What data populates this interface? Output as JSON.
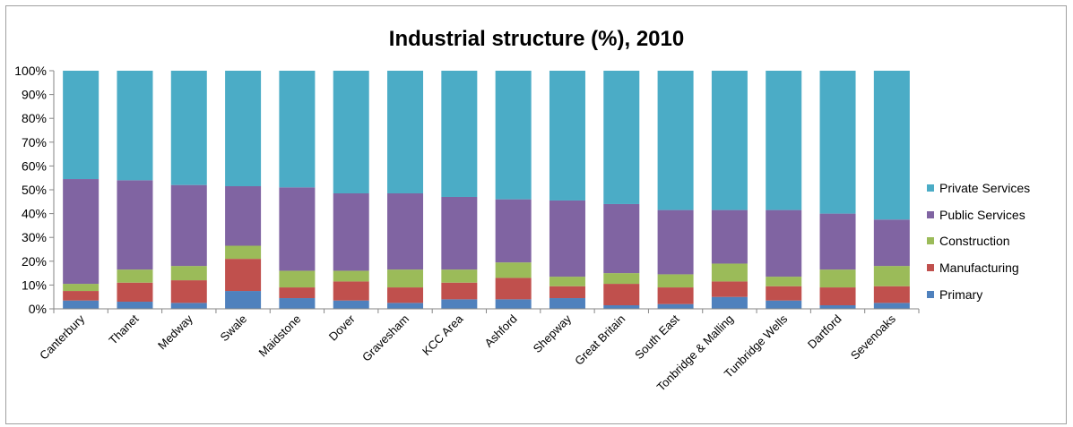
{
  "chart_data": {
    "type": "bar",
    "stacked": true,
    "title": "Industrial structure (%), 2010",
    "xlabel": "",
    "ylabel": "",
    "ylim": [
      0,
      100
    ],
    "y_ticks": [
      "0%",
      "10%",
      "20%",
      "30%",
      "40%",
      "50%",
      "60%",
      "70%",
      "80%",
      "90%",
      "100%"
    ],
    "grid": false,
    "legend_position": "right",
    "categories": [
      "Canterbury",
      "Thanet",
      "Medway",
      "Swale",
      "Maidstone",
      "Dover",
      "Gravesham",
      "KCC Area",
      "Ashford",
      "Shepway",
      "Great Britain",
      "South East",
      "Tonbridge & Malling",
      "Tunbridge Wells",
      "Dartford",
      "Sevenoaks"
    ],
    "series": [
      {
        "name": "Primary",
        "color": "#4f81bd",
        "values": [
          3.5,
          3.0,
          2.5,
          7.5,
          4.5,
          3.5,
          2.5,
          4.0,
          4.0,
          4.5,
          1.5,
          2.0,
          5.0,
          3.5,
          1.5,
          2.5
        ]
      },
      {
        "name": "Manufacturing",
        "color": "#c0504d",
        "values": [
          4.0,
          8.0,
          9.5,
          13.5,
          4.5,
          8.0,
          6.5,
          7.0,
          9.0,
          5.0,
          9.0,
          7.0,
          6.5,
          6.0,
          7.5,
          7.0
        ]
      },
      {
        "name": "Construction",
        "color": "#9bbb59",
        "values": [
          3.0,
          5.5,
          6.0,
          5.5,
          7.0,
          4.5,
          7.5,
          5.5,
          6.5,
          4.0,
          4.5,
          5.5,
          7.5,
          4.0,
          7.5,
          8.5
        ]
      },
      {
        "name": "Public Services",
        "color": "#8064a2",
        "values": [
          44.0,
          37.5,
          34.0,
          25.0,
          35.0,
          32.5,
          32.0,
          30.5,
          26.5,
          32.0,
          29.0,
          27.0,
          22.5,
          28.0,
          23.5,
          19.5
        ]
      },
      {
        "name": "Private Services",
        "color": "#4bacc6",
        "values": [
          45.5,
          46.0,
          48.0,
          48.5,
          49.0,
          51.5,
          51.5,
          53.0,
          54.0,
          54.5,
          56.0,
          58.5,
          58.5,
          58.5,
          60.0,
          62.5
        ]
      }
    ]
  }
}
